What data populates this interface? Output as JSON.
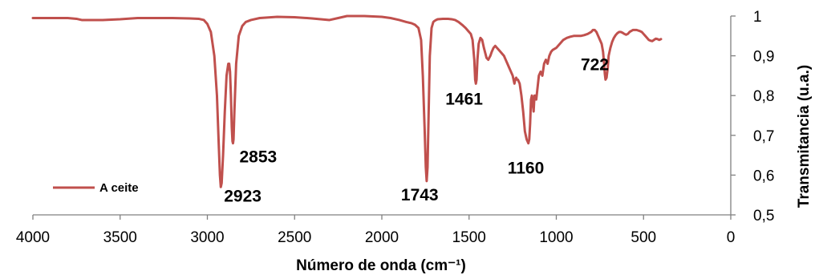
{
  "chart_data": {
    "type": "line",
    "xlabel": "Número de onda (cm⁻¹)",
    "ylabel": "Transmitancia (u.a.)",
    "xlim": [
      4000,
      0
    ],
    "ylim": [
      0.5,
      1
    ],
    "x_reversed": true,
    "y_axis_side": "right",
    "x_ticks": [
      "4000",
      "3500",
      "3000",
      "2500",
      "2000",
      "1500",
      "1000",
      "500",
      "0"
    ],
    "x_tick_values": [
      4000,
      3500,
      3000,
      2500,
      2000,
      1500,
      1000,
      500,
      0
    ],
    "y_ticks": [
      "0,5",
      "0,6",
      "0,7",
      "0,8",
      "0,9",
      "1"
    ],
    "y_tick_values": [
      0.5,
      0.6,
      0.7,
      0.8,
      0.9,
      1.0
    ],
    "grid": false,
    "legend": {
      "position": "bottom-left",
      "entries": [
        "A ceite"
      ]
    },
    "series": [
      {
        "name": "A ceite",
        "color": "#c0504d",
        "x": [
          4000,
          3900,
          3800,
          3750,
          3720,
          3700,
          3600,
          3500,
          3400,
          3300,
          3200,
          3100,
          3050,
          3020,
          3000,
          2980,
          2960,
          2945,
          2935,
          2928,
          2923,
          2918,
          2910,
          2900,
          2890,
          2880,
          2875,
          2870,
          2865,
          2860,
          2856,
          2853,
          2850,
          2845,
          2835,
          2820,
          2800,
          2780,
          2750,
          2700,
          2600,
          2500,
          2400,
          2350,
          2300,
          2250,
          2200,
          2100,
          2000,
          1950,
          1900,
          1860,
          1830,
          1810,
          1790,
          1775,
          1765,
          1755,
          1748,
          1743,
          1738,
          1732,
          1725,
          1715,
          1705,
          1700,
          1690,
          1680,
          1650,
          1620,
          1600,
          1580,
          1560,
          1540,
          1520,
          1500,
          1490,
          1480,
          1470,
          1465,
          1461,
          1457,
          1452,
          1445,
          1435,
          1425,
          1415,
          1400,
          1390,
          1378,
          1370,
          1360,
          1350,
          1340,
          1330,
          1320,
          1300,
          1290,
          1280,
          1270,
          1260,
          1250,
          1240,
          1235,
          1230,
          1225,
          1220,
          1210,
          1200,
          1190,
          1180,
          1170,
          1165,
          1160,
          1155,
          1150,
          1145,
          1140,
          1135,
          1130,
          1125,
          1120,
          1115,
          1110,
          1100,
          1090,
          1080,
          1070,
          1060,
          1050,
          1040,
          1030,
          1020,
          1000,
          980,
          960,
          940,
          920,
          900,
          880,
          860,
          840,
          820,
          800,
          790,
          780,
          770,
          760,
          750,
          740,
          732,
          726,
          722,
          718,
          712,
          705,
          700,
          690,
          680,
          670,
          660,
          650,
          640,
          630,
          620,
          610,
          600,
          590,
          580,
          560,
          540,
          520,
          510,
          500,
          490,
          480,
          470,
          460,
          450,
          440,
          430,
          420,
          410,
          400
        ],
        "y": [
          0.995,
          0.995,
          0.995,
          0.993,
          0.99,
          0.99,
          0.99,
          0.992,
          0.995,
          0.995,
          0.995,
          0.994,
          0.993,
          0.99,
          0.98,
          0.96,
          0.9,
          0.8,
          0.68,
          0.6,
          0.57,
          0.58,
          0.65,
          0.76,
          0.85,
          0.88,
          0.88,
          0.86,
          0.8,
          0.72,
          0.685,
          0.68,
          0.69,
          0.76,
          0.88,
          0.95,
          0.975,
          0.985,
          0.99,
          0.995,
          0.998,
          0.997,
          0.994,
          0.992,
          0.99,
          0.995,
          1.0,
          1.0,
          0.998,
          0.995,
          0.99,
          0.985,
          0.982,
          0.978,
          0.97,
          0.94,
          0.85,
          0.72,
          0.62,
          0.585,
          0.62,
          0.75,
          0.9,
          0.97,
          0.985,
          0.987,
          0.99,
          0.992,
          0.993,
          0.993,
          0.992,
          0.99,
          0.985,
          0.978,
          0.97,
          0.96,
          0.955,
          0.94,
          0.89,
          0.84,
          0.83,
          0.84,
          0.89,
          0.93,
          0.945,
          0.94,
          0.92,
          0.895,
          0.89,
          0.9,
          0.91,
          0.92,
          0.925,
          0.92,
          0.915,
          0.91,
          0.9,
          0.89,
          0.88,
          0.87,
          0.86,
          0.85,
          0.83,
          0.84,
          0.845,
          0.84,
          0.84,
          0.83,
          0.8,
          0.76,
          0.71,
          0.69,
          0.685,
          0.68,
          0.69,
          0.73,
          0.79,
          0.8,
          0.78,
          0.76,
          0.8,
          0.8,
          0.79,
          0.81,
          0.85,
          0.86,
          0.85,
          0.88,
          0.89,
          0.88,
          0.9,
          0.91,
          0.915,
          0.92,
          0.93,
          0.94,
          0.945,
          0.948,
          0.95,
          0.95,
          0.95,
          0.952,
          0.955,
          0.96,
          0.965,
          0.965,
          0.96,
          0.95,
          0.94,
          0.93,
          0.91,
          0.88,
          0.855,
          0.84,
          0.845,
          0.87,
          0.9,
          0.92,
          0.935,
          0.945,
          0.952,
          0.957,
          0.96,
          0.96,
          0.958,
          0.955,
          0.953,
          0.955,
          0.96,
          0.965,
          0.965,
          0.962,
          0.96,
          0.955,
          0.95,
          0.945,
          0.94,
          0.938,
          0.937,
          0.94,
          0.943,
          0.942,
          0.94,
          0.942
        ]
      }
    ],
    "annotations": [
      {
        "text": "2923",
        "x": 2923,
        "y": 0.57
      },
      {
        "text": "2853",
        "x": 2853,
        "y": 0.68
      },
      {
        "text": "1743",
        "x": 1743,
        "y": 0.585
      },
      {
        "text": "1461",
        "x": 1461,
        "y": 0.83
      },
      {
        "text": "1160",
        "x": 1160,
        "y": 0.68
      },
      {
        "text": "722",
        "x": 722,
        "y": 0.84
      }
    ]
  }
}
